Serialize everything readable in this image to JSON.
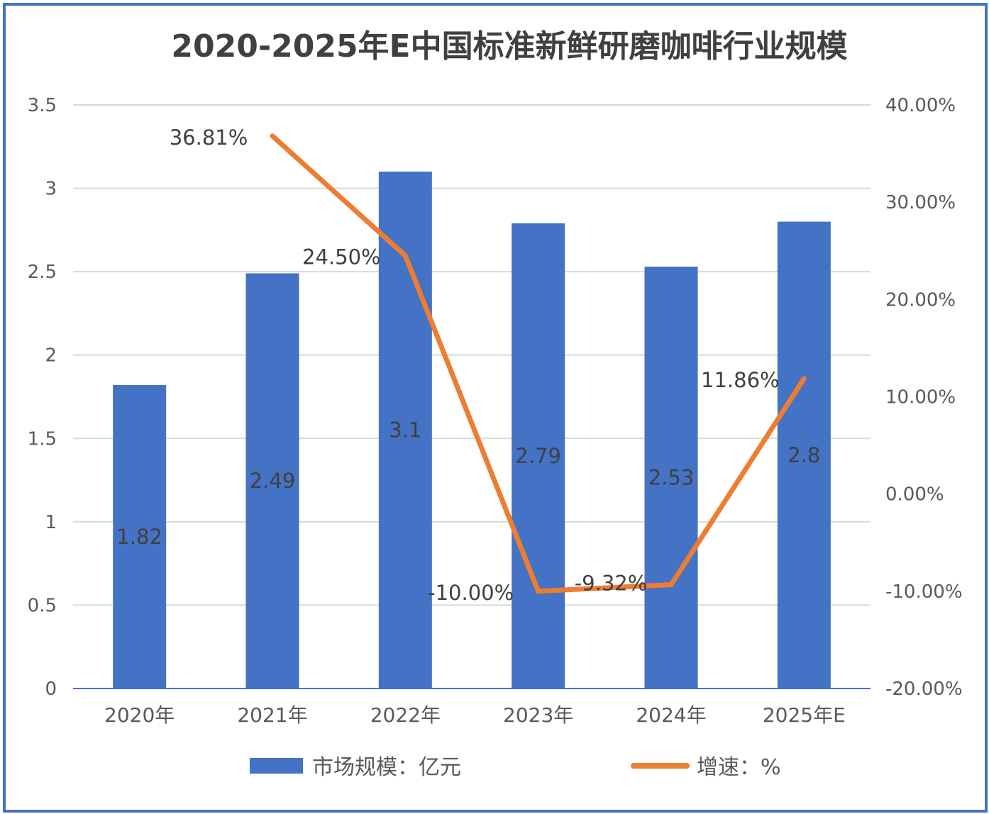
{
  "chart_data": {
    "type": "bar+line",
    "title": "2020-2025年E中国标准新鲜研磨咖啡行业规模",
    "categories": [
      "2020年",
      "2021年",
      "2022年",
      "2023年",
      "2024年",
      "2025年E"
    ],
    "series": [
      {
        "name": "市场规模：亿元",
        "type": "bar",
        "axis": "left",
        "color": "#4472C4",
        "values": [
          1.82,
          2.49,
          3.1,
          2.79,
          2.53,
          2.8
        ],
        "labels": [
          "1.82",
          "2.49",
          "3.1",
          "2.79",
          "2.53",
          "2.8"
        ]
      },
      {
        "name": "增速：%",
        "type": "line",
        "axis": "right",
        "color": "#ED7D31",
        "values": [
          null,
          36.81,
          24.5,
          -10.0,
          -9.32,
          11.86
        ],
        "labels": [
          "",
          "36.81%",
          "24.50%",
          "-10.00%",
          "-9.32%",
          "11.86%"
        ]
      }
    ],
    "left_axis": {
      "range": [
        0,
        3.5
      ],
      "ticks": [
        "0",
        "0.5",
        "1",
        "1.5",
        "2",
        "2.5",
        "3",
        "3.5"
      ]
    },
    "right_axis": {
      "range": [
        -20,
        40
      ],
      "ticks": [
        "-20.00%",
        "-10.00%",
        "0.00%",
        "10.00%",
        "20.00%",
        "30.00%",
        "40.00%"
      ]
    },
    "grid": true,
    "legend": "bottom"
  }
}
